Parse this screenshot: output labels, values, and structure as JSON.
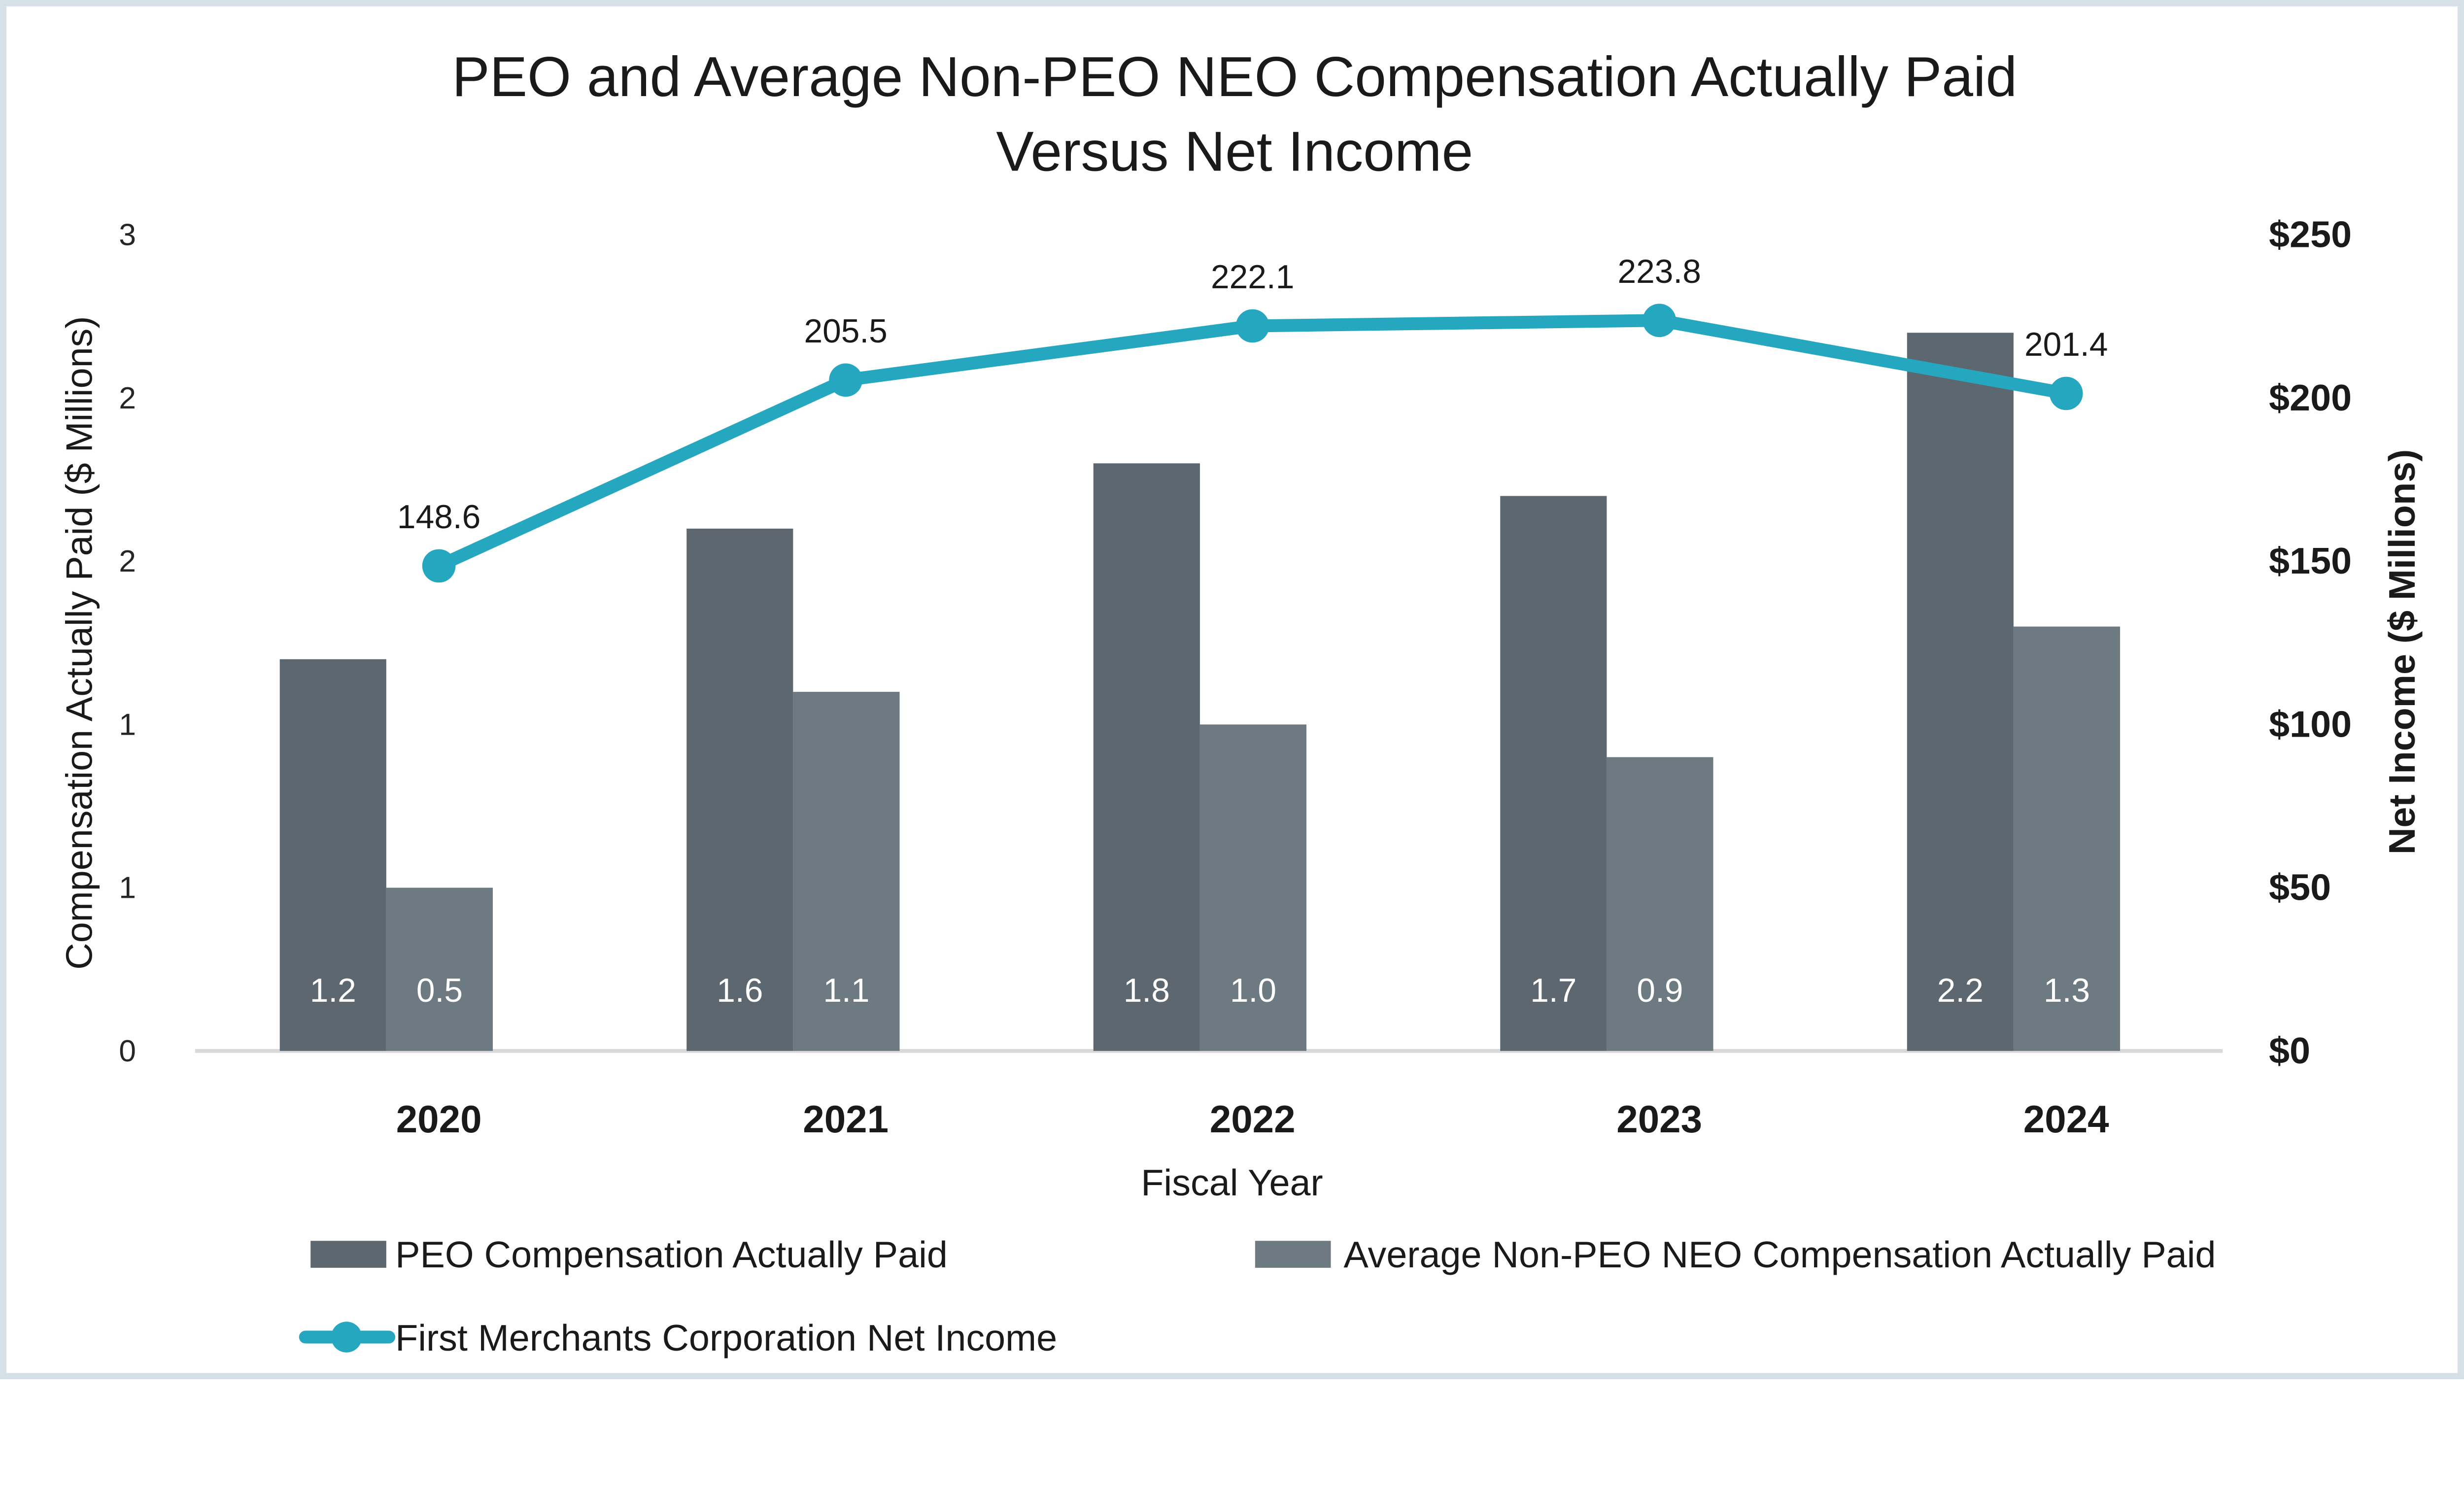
{
  "page": {
    "background": "#FFFFFF",
    "border_color": "#D5E0E7"
  },
  "title": {
    "line1": "PEO and Average Non-PEO NEO Compensation Actually Paid",
    "line2": "Versus Net Income"
  },
  "chart_data": {
    "type": "combo: clustered bar + line",
    "categories": [
      "2020",
      "2021",
      "2022",
      "2023",
      "2024"
    ],
    "series": [
      {
        "name": "PEO Compensation Actually Paid",
        "type": "bar",
        "axis": "left",
        "color": "#5C6770",
        "values": [
          1.2,
          1.6,
          1.8,
          1.7,
          2.2
        ],
        "data_labels": [
          "1.2",
          "1.6",
          "1.8",
          "1.7",
          "2.2"
        ],
        "data_label_color": "#FFFFFF"
      },
      {
        "name": "Average Non-PEO NEO Compensation Actually Paid",
        "type": "bar",
        "axis": "left",
        "color": "#6E7A82",
        "values": [
          0.5,
          1.1,
          1.0,
          0.9,
          1.3
        ],
        "data_labels": [
          "0.5",
          "1.1",
          "1.0",
          "0.9",
          "1.3"
        ],
        "data_label_color": "#FFFFFF"
      },
      {
        "name": "First Merchants Corporation Net Income",
        "type": "line",
        "axis": "right",
        "color": "#25A7C0",
        "values": [
          148.6,
          205.5,
          222.1,
          223.8,
          201.4
        ],
        "data_labels": [
          "148.6",
          "205.5",
          "222.1",
          "223.8",
          "201.4"
        ]
      }
    ],
    "x_axis": {
      "title": "Fiscal Year",
      "tick_labels": [
        "2020",
        "2021",
        "2022",
        "2023",
        "2024"
      ],
      "line_color": "#D9D9D9"
    },
    "left_axis": {
      "title": "Compensation Actually Paid ($ Millions)",
      "tick_labels_top_to_bottom": [
        "3",
        "2",
        "2",
        "1",
        "1",
        "0"
      ],
      "range": [
        0,
        2.5
      ]
    },
    "right_axis": {
      "title": "Net Income ($ Millions)",
      "tick_labels_top_to_bottom": [
        "$250",
        "$200",
        "$150",
        "$100",
        "$50",
        "$0"
      ],
      "range": [
        0,
        250
      ]
    },
    "legend_position": "bottom-left, two rows",
    "gridlines": false
  }
}
